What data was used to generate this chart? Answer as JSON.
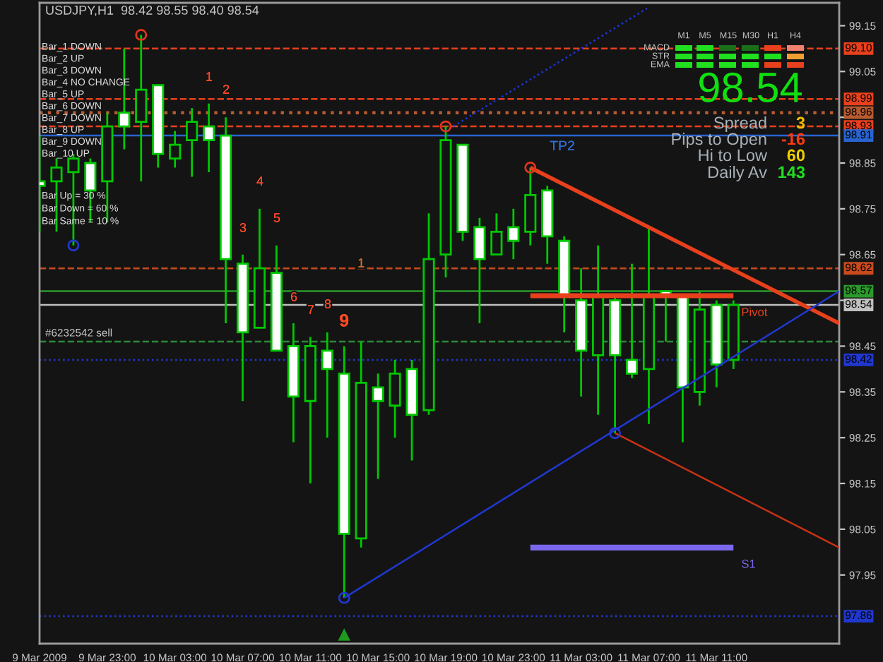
{
  "chart_data": {
    "type": "candlestick",
    "title": "USDJPY,H1  98.42 98.55 98.40 98.54",
    "x": [
      "2009-03-09T19:00",
      "2009-03-09T20:00",
      "2009-03-09T21:00",
      "2009-03-09T22:00",
      "2009-03-09T23:00",
      "2009-03-10T00:00",
      "2009-03-10T01:00",
      "2009-03-10T02:00",
      "2009-03-10T03:00",
      "2009-03-10T04:00",
      "2009-03-10T05:00",
      "2009-03-10T06:00",
      "2009-03-10T07:00",
      "2009-03-10T08:00",
      "2009-03-10T09:00",
      "2009-03-10T10:00",
      "2009-03-10T11:00",
      "2009-03-10T12:00",
      "2009-03-10T13:00",
      "2009-03-10T14:00",
      "2009-03-10T15:00",
      "2009-03-10T16:00",
      "2009-03-10T17:00",
      "2009-03-10T18:00",
      "2009-03-10T19:00",
      "2009-03-10T20:00",
      "2009-03-10T21:00",
      "2009-03-10T22:00",
      "2009-03-10T23:00",
      "2009-03-11T00:00",
      "2009-03-11T01:00",
      "2009-03-11T02:00",
      "2009-03-11T03:00",
      "2009-03-11T04:00",
      "2009-03-11T05:00",
      "2009-03-11T06:00",
      "2009-03-11T07:00",
      "2009-03-11T08:00",
      "2009-03-11T09:00",
      "2009-03-11T10:00",
      "2009-03-11T11:00",
      "2009-03-11T12:00"
    ],
    "ohlc": [
      [
        98.81,
        98.91,
        98.7,
        98.8
      ],
      [
        98.81,
        98.86,
        98.7,
        98.84
      ],
      [
        98.83,
        98.87,
        98.67,
        98.86
      ],
      [
        98.85,
        98.86,
        98.72,
        98.79
      ],
      [
        98.81,
        98.96,
        98.72,
        98.93
      ],
      [
        98.96,
        99.1,
        98.88,
        98.93
      ],
      [
        98.94,
        99.13,
        98.81,
        99.01
      ],
      [
        99.02,
        99.02,
        98.84,
        98.87
      ],
      [
        98.86,
        98.92,
        98.84,
        98.89
      ],
      [
        98.9,
        98.97,
        98.82,
        98.94
      ],
      [
        98.93,
        98.98,
        98.83,
        98.9
      ],
      [
        98.91,
        98.95,
        98.5,
        98.64
      ],
      [
        98.63,
        98.65,
        98.33,
        98.48
      ],
      [
        98.49,
        98.75,
        98.49,
        98.62
      ],
      [
        98.61,
        98.67,
        98.44,
        98.44
      ],
      [
        98.45,
        98.5,
        98.24,
        98.34
      ],
      [
        98.33,
        98.47,
        98.15,
        98.45
      ],
      [
        98.44,
        98.48,
        98.25,
        98.4
      ],
      [
        98.39,
        98.45,
        97.9,
        98.04
      ],
      [
        98.03,
        98.46,
        98.01,
        98.37
      ],
      [
        98.36,
        98.39,
        98.16,
        98.33
      ],
      [
        98.32,
        98.42,
        98.25,
        98.39
      ],
      [
        98.4,
        98.42,
        98.2,
        98.3
      ],
      [
        98.31,
        98.74,
        98.3,
        98.64
      ],
      [
        98.65,
        98.93,
        98.6,
        98.9
      ],
      [
        98.89,
        98.89,
        98.68,
        98.7
      ],
      [
        98.71,
        98.73,
        98.5,
        98.64
      ],
      [
        98.65,
        98.74,
        98.65,
        98.7
      ],
      [
        98.71,
        98.75,
        98.64,
        98.68
      ],
      [
        98.7,
        98.84,
        98.67,
        98.78
      ],
      [
        98.79,
        98.8,
        98.63,
        98.69
      ],
      [
        98.68,
        98.69,
        98.48,
        98.56
      ],
      [
        98.55,
        98.62,
        98.34,
        98.44
      ],
      [
        98.43,
        98.67,
        98.3,
        98.56
      ],
      [
        98.55,
        98.56,
        98.26,
        98.43
      ],
      [
        98.42,
        98.63,
        98.38,
        98.39
      ],
      [
        98.4,
        98.71,
        98.28,
        98.56
      ],
      [
        98.57,
        98.57,
        98.46,
        98.56
      ],
      [
        98.56,
        98.56,
        98.24,
        98.36
      ],
      [
        98.35,
        98.57,
        98.32,
        98.53
      ],
      [
        98.54,
        98.55,
        98.36,
        98.41
      ],
      [
        98.42,
        98.55,
        98.4,
        98.54
      ]
    ],
    "color": "#00c800",
    "colors": [
      "#ffffff",
      "#141414",
      "#141414",
      "#ffffff",
      "#141414",
      "#ffffff",
      "#141414",
      "#ffffff",
      "#141414",
      "#141414",
      "#ffffff",
      "#ffffff",
      "#ffffff",
      "#141414",
      "#ffffff",
      "#ffffff",
      "#141414",
      "#ffffff",
      "#ffffff",
      "#141414",
      "#ffffff",
      "#141414",
      "#ffffff",
      "#141414",
      "#141414",
      "#ffffff",
      "#ffffff",
      "#141414",
      "#ffffff",
      "#141414",
      "#ffffff",
      "#ffffff",
      "#ffffff",
      "#141414",
      "#ffffff",
      "#ffffff",
      "#141414",
      "#ffffff",
      "#ffffff",
      "#141414",
      "#ffffff",
      "#141414"
    ],
    "series": [
      {
        "type": "line",
        "color": "#e8401c",
        "x": [
          "2009-03-11T00:00",
          "2009-03-11T18:15"
        ],
        "values": [
          98.84,
          98.5
        ]
      },
      {
        "type": "line",
        "color": "#c83214",
        "x": [
          "2009-03-11T05:00",
          "2009-03-11T18:15"
        ],
        "values": [
          98.26,
          98.01
        ]
      },
      {
        "type": "line",
        "color": "#2038d0",
        "x": [
          "2009-03-10T13:00",
          "2009-03-11T18:15"
        ],
        "values": [
          97.9,
          98.57
        ]
      },
      {
        "type": "line",
        "color": "#2038d0",
        "line_style": "dotted",
        "x": [
          "2009-03-10T19:00",
          "2009-03-11T07:00"
        ],
        "values": [
          98.92,
          99.19
        ]
      },
      {
        "type": "line",
        "name": "Pivot",
        "color": "#e8401c",
        "x": [
          "2009-03-11T00:00",
          "2009-03-11T12:00"
        ],
        "values": [
          98.56,
          98.56
        ]
      },
      {
        "type": "line",
        "name": "S1",
        "color": "#7b68ee",
        "x": [
          "2009-03-11T00:00",
          "2009-03-11T12:00"
        ],
        "values": [
          98.01,
          98.01
        ]
      },
      {
        "type": "scatter",
        "color": "#e0341c",
        "marker": "circle",
        "x": [
          "2009-03-10T01:00",
          "2009-03-10T19:00",
          "2009-03-11T00:00"
        ],
        "values": [
          99.13,
          98.93,
          98.84
        ]
      },
      {
        "type": "scatter",
        "color": "#2038d0",
        "marker": "circle",
        "x": [
          "2009-03-09T21:00",
          "2009-03-10T13:00",
          "2009-03-11T05:00"
        ],
        "values": [
          98.67,
          97.9,
          98.26
        ]
      },
      {
        "type": "scatter",
        "color": "#1e9a1e",
        "marker": "triangle",
        "x": [
          "2009-03-10T13:00"
        ],
        "values": [
          97.82
        ]
      }
    ],
    "ref_lines": [
      {
        "axis": "y",
        "value": 99.1,
        "label": "99.10",
        "color": "#e8401c",
        "line_style": "dashed"
      },
      {
        "axis": "y",
        "value": 98.99,
        "label": "98.99",
        "color": "#e8401c",
        "line_style": "dashed"
      },
      {
        "axis": "y",
        "value": 98.96,
        "label": "98.96",
        "color": "#b85a30",
        "line_style": "dotted"
      },
      {
        "axis": "y",
        "value": 98.93,
        "label": "98.93",
        "color": "#e8401c",
        "line_style": "dashed"
      },
      {
        "axis": "y",
        "value": 98.91,
        "label": "98.91",
        "color": "#2864d0",
        "line_style": "solid"
      },
      {
        "axis": "y",
        "value": 98.62,
        "label": "98.62",
        "color": "#c84a1e",
        "line_style": "dashed"
      },
      {
        "axis": "y",
        "value": 98.57,
        "label": "98.57",
        "color": "#2a9a2a",
        "line_style": "solid"
      },
      {
        "axis": "y",
        "value": 98.54,
        "label": "98.54",
        "color": "#c0c0c0",
        "line_style": "solid"
      },
      {
        "axis": "y",
        "value": 98.46,
        "color": "#2a8a3a",
        "line_style": "dashed"
      },
      {
        "axis": "y",
        "value": 98.42,
        "label": "98.42",
        "color": "#2038d0",
        "line_style": "dotted"
      },
      {
        "axis": "y",
        "value": 97.86,
        "label": "97.86",
        "color": "#2038d0",
        "line_style": "dotted"
      }
    ],
    "annotations": [
      "1",
      "2",
      "3",
      "4",
      "5",
      "6",
      "7",
      "8",
      "9",
      "1",
      "TP2",
      {
        "text": "#6232542 sell",
        "x": "2009-03-09T19:20",
        "y": 98.46
      },
      "Bar_1 DOWN",
      "Bar_2 UP",
      "Bar_3 DOWN",
      "Bar_4 NO CHANGE",
      "Bar_5 UP",
      "Bar_6 DOWN",
      "Bar_7 DOWN",
      "Bar_8 UP",
      "Bar_9 DOWN",
      "Bar_10 UP",
      "Bar Up = 30 %",
      "Bar Down = 60 %",
      "Bar Same = 10 %",
      "M1",
      "M5",
      "M15",
      "M30",
      "H1",
      "H4",
      "MACD",
      "STR",
      "EMA",
      "98.54",
      "Spread",
      "3",
      "Pips to Open",
      "-16",
      "Hi to Low",
      "60",
      "Daily Av",
      "143"
    ],
    "xlim": [
      "2009-03-09T19:00",
      "2009-03-11T18:15"
    ],
    "xticks": [
      {
        "value": "2009-03-09T19:00",
        "label": "9 Mar 2009"
      },
      {
        "value": "2009-03-09T23:00",
        "label": "9 Mar 23:00"
      },
      {
        "value": "2009-03-10T03:00",
        "label": "10 Mar 03:00"
      },
      {
        "value": "2009-03-10T07:00",
        "label": "10 Mar 07:00"
      },
      {
        "value": "2009-03-10T11:00",
        "label": "10 Mar 11:00"
      },
      {
        "value": "2009-03-10T15:00",
        "label": "10 Mar 15:00"
      },
      {
        "value": "2009-03-10T19:00",
        "label": "10 Mar 19:00"
      },
      {
        "value": "2009-03-10T23:00",
        "label": "10 Mar 23:00"
      },
      {
        "value": "2009-03-11T03:00",
        "label": "11 Mar 03:00"
      },
      {
        "value": "2009-03-11T07:00",
        "label": "11 Mar 07:00"
      },
      {
        "value": "2009-03-11T11:00",
        "label": "11 Mar 11:00"
      }
    ],
    "ylim": [
      97.8,
      99.2
    ],
    "yticks": [
      97.95,
      98.05,
      98.15,
      98.25,
      98.35,
      98.45,
      {
        "value": 98.55,
        "label": null
      },
      98.65,
      98.75,
      98.85,
      {
        "value": 98.95,
        "label": null
      },
      99.05,
      99.15
    ]
  }
}
